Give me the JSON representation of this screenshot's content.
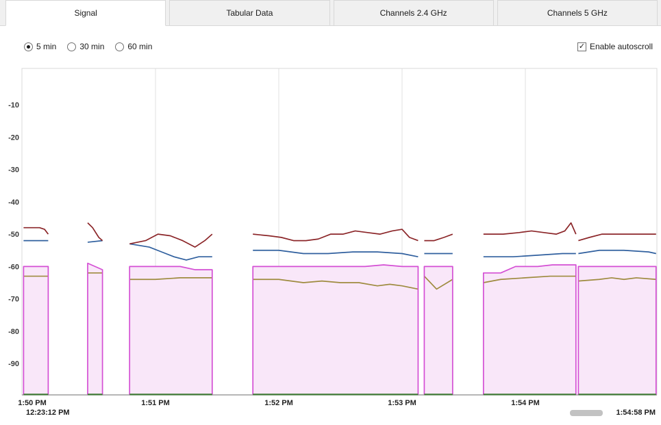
{
  "tabs": [
    {
      "label": "Signal",
      "active": true
    },
    {
      "label": "Tabular Data",
      "active": false
    },
    {
      "label": "Channels 2.4 GHz",
      "active": false
    },
    {
      "label": "Channels 5 GHz",
      "active": false
    }
  ],
  "controls": {
    "radios": [
      {
        "label": "5 min",
        "selected": true
      },
      {
        "label": "30 min",
        "selected": false
      },
      {
        "label": "60 min",
        "selected": false
      }
    ],
    "autoscroll_label": "Enable autoscroll",
    "autoscroll_checked": true
  },
  "status_bar": {
    "start_time": "12:23:12 PM",
    "end_time": "1:54:58 PM"
  },
  "chart_data": {
    "type": "line",
    "title": "",
    "xlabel": "",
    "ylabel": "",
    "grid": "vertical-only",
    "legend": "none",
    "x_axis": {
      "unit": "minutes after 1:50 PM",
      "range": [
        -0.083,
        5.07
      ],
      "ticks": [
        {
          "t": 0,
          "label": "1:50 PM"
        },
        {
          "t": 1,
          "label": "1:51 PM"
        },
        {
          "t": 2,
          "label": "1:52 PM"
        },
        {
          "t": 3,
          "label": "1:53 PM"
        },
        {
          "t": 4,
          "label": "1:54 PM"
        }
      ]
    },
    "y_axis": {
      "unit": "dBm",
      "range": [
        -100,
        0
      ],
      "ticks": [
        -10,
        -20,
        -30,
        -40,
        -50,
        -60,
        -70,
        -80,
        -90
      ]
    },
    "series": [
      {
        "name": "olive-line",
        "color": "#9e8b3f",
        "segments": [
          [
            [
              -0.07,
              -63
            ],
            [
              0.13,
              -63
            ]
          ],
          [
            [
              0.45,
              -62
            ],
            [
              0.57,
              -62
            ]
          ],
          [
            [
              0.79,
              -64
            ],
            [
              1.0,
              -64
            ],
            [
              1.2,
              -63.5
            ],
            [
              1.46,
              -63.5
            ]
          ],
          [
            [
              1.79,
              -64
            ],
            [
              2.0,
              -64
            ],
            [
              2.2,
              -65
            ],
            [
              2.35,
              -64.5
            ],
            [
              2.5,
              -65
            ],
            [
              2.65,
              -65
            ],
            [
              2.8,
              -66
            ],
            [
              2.9,
              -65.5
            ],
            [
              3.0,
              -66
            ],
            [
              3.13,
              -67
            ]
          ],
          [
            [
              3.18,
              -63
            ],
            [
              3.28,
              -67
            ],
            [
              3.41,
              -64
            ]
          ],
          [
            [
              3.66,
              -65
            ],
            [
              3.8,
              -64
            ],
            [
              4.0,
              -63.5
            ],
            [
              4.2,
              -63
            ],
            [
              4.41,
              -63
            ]
          ],
          [
            [
              4.43,
              -64.5
            ],
            [
              4.6,
              -64
            ],
            [
              4.7,
              -63.5
            ],
            [
              4.8,
              -64
            ],
            [
              4.9,
              -63.5
            ],
            [
              5.06,
              -64
            ]
          ]
        ]
      },
      {
        "name": "magenta-line",
        "color": "#d44fd4",
        "fill": "#f9e7f9",
        "edge_to_baseline": true,
        "segments": [
          [
            [
              -0.07,
              -60
            ],
            [
              0.13,
              -60
            ]
          ],
          [
            [
              0.45,
              -59
            ],
            [
              0.51,
              -60
            ],
            [
              0.57,
              -61
            ]
          ],
          [
            [
              0.79,
              -60
            ],
            [
              1.2,
              -60
            ],
            [
              1.32,
              -61
            ],
            [
              1.46,
              -61
            ]
          ],
          [
            [
              1.79,
              -60
            ],
            [
              2.7,
              -60
            ],
            [
              2.85,
              -59.5
            ],
            [
              3.0,
              -60
            ],
            [
              3.13,
              -60
            ]
          ],
          [
            [
              3.18,
              -60
            ],
            [
              3.41,
              -60
            ]
          ],
          [
            [
              3.66,
              -62
            ],
            [
              3.8,
              -62
            ],
            [
              3.92,
              -60
            ],
            [
              4.1,
              -60
            ],
            [
              4.22,
              -59.5
            ],
            [
              4.41,
              -59.5
            ]
          ],
          [
            [
              4.43,
              -60
            ],
            [
              5.06,
              -60
            ]
          ]
        ]
      },
      {
        "name": "blue-line",
        "color": "#2f5f9e",
        "segments": [
          [
            [
              -0.07,
              -52
            ],
            [
              0.13,
              -52
            ]
          ],
          [
            [
              0.45,
              -52.5
            ],
            [
              0.57,
              -52
            ]
          ],
          [
            [
              0.79,
              -53
            ],
            [
              0.95,
              -54
            ],
            [
              1.05,
              -55.5
            ],
            [
              1.15,
              -57
            ],
            [
              1.25,
              -58
            ],
            [
              1.35,
              -57
            ],
            [
              1.46,
              -57
            ]
          ],
          [
            [
              1.79,
              -55
            ],
            [
              2.0,
              -55
            ],
            [
              2.2,
              -56
            ],
            [
              2.4,
              -56
            ],
            [
              2.6,
              -55.5
            ],
            [
              2.8,
              -55.5
            ],
            [
              3.0,
              -56
            ],
            [
              3.13,
              -57
            ]
          ],
          [
            [
              3.18,
              -56
            ],
            [
              3.41,
              -56
            ]
          ],
          [
            [
              3.66,
              -57
            ],
            [
              3.9,
              -57
            ],
            [
              4.1,
              -56.5
            ],
            [
              4.3,
              -56
            ],
            [
              4.41,
              -56
            ]
          ],
          [
            [
              4.43,
              -56
            ],
            [
              4.6,
              -55
            ],
            [
              4.8,
              -55
            ],
            [
              5.0,
              -55.5
            ],
            [
              5.06,
              -56
            ]
          ]
        ]
      },
      {
        "name": "dark-red-line",
        "color": "#8b2528",
        "segments": [
          [
            [
              -0.07,
              -48
            ],
            [
              0.06,
              -48
            ],
            [
              0.1,
              -48.5
            ],
            [
              0.13,
              -50
            ]
          ],
          [
            [
              0.45,
              -46.5
            ],
            [
              0.49,
              -48
            ],
            [
              0.54,
              -51
            ],
            [
              0.57,
              -52
            ]
          ],
          [
            [
              0.79,
              -53
            ],
            [
              0.92,
              -52
            ],
            [
              1.02,
              -50
            ],
            [
              1.12,
              -50.5
            ],
            [
              1.22,
              -52
            ],
            [
              1.32,
              -54
            ],
            [
              1.4,
              -52
            ],
            [
              1.46,
              -50
            ]
          ],
          [
            [
              1.79,
              -50
            ],
            [
              1.92,
              -50.5
            ],
            [
              2.02,
              -51
            ],
            [
              2.12,
              -52
            ],
            [
              2.22,
              -52
            ],
            [
              2.32,
              -51.5
            ],
            [
              2.42,
              -50
            ],
            [
              2.52,
              -50
            ],
            [
              2.62,
              -49
            ],
            [
              2.72,
              -49.5
            ],
            [
              2.82,
              -50
            ],
            [
              2.92,
              -49
            ],
            [
              3.0,
              -48.5
            ],
            [
              3.06,
              -51
            ],
            [
              3.13,
              -52
            ]
          ],
          [
            [
              3.18,
              -52
            ],
            [
              3.26,
              -52
            ],
            [
              3.34,
              -51
            ],
            [
              3.41,
              -50
            ]
          ],
          [
            [
              3.66,
              -50
            ],
            [
              3.82,
              -50
            ],
            [
              3.95,
              -49.5
            ],
            [
              4.05,
              -49
            ],
            [
              4.15,
              -49.5
            ],
            [
              4.25,
              -50
            ],
            [
              4.32,
              -49
            ],
            [
              4.37,
              -46.5
            ],
            [
              4.41,
              -50
            ]
          ],
          [
            [
              4.43,
              -52
            ],
            [
              4.52,
              -51
            ],
            [
              4.62,
              -50
            ],
            [
              4.8,
              -50
            ],
            [
              5.0,
              -50
            ],
            [
              5.06,
              -50
            ]
          ]
        ]
      },
      {
        "name": "green-baseline-line",
        "color": "#3f7a35",
        "segments": [
          [
            [
              -0.07,
              -99.6
            ],
            [
              0.13,
              -99.6
            ]
          ],
          [
            [
              0.45,
              -99.6
            ],
            [
              0.57,
              -99.6
            ]
          ],
          [
            [
              0.79,
              -99.6
            ],
            [
              1.46,
              -99.6
            ]
          ],
          [
            [
              1.79,
              -99.6
            ],
            [
              3.13,
              -99.6
            ]
          ],
          [
            [
              3.18,
              -99.6
            ],
            [
              3.41,
              -99.6
            ]
          ],
          [
            [
              3.66,
              -99.6
            ],
            [
              4.41,
              -99.6
            ]
          ],
          [
            [
              4.43,
              -99.6
            ],
            [
              5.06,
              -99.6
            ]
          ]
        ]
      }
    ]
  }
}
